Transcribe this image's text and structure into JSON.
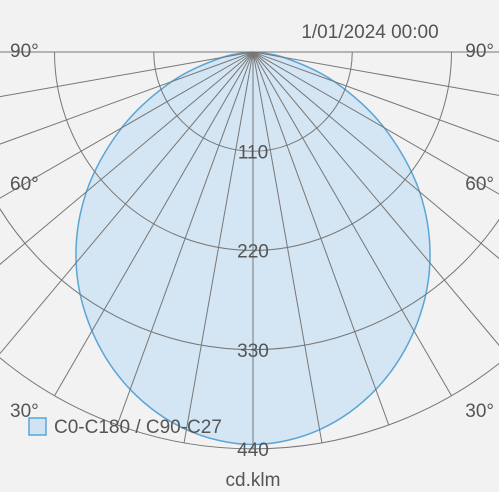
{
  "chart_data": {
    "type": "polar",
    "title": "1/01/2024 00:00",
    "unit_label": "cd.klm",
    "angle_labels": {
      "left": [
        "90°",
        "60°",
        "30°"
      ],
      "right": [
        "90°",
        "60°",
        "30°"
      ]
    },
    "radial_axis": {
      "ticks": [
        110,
        220,
        330,
        440
      ],
      "max": 440
    },
    "angular_grid_step_deg": 10,
    "angular_range_deg": [
      0,
      90
    ],
    "series": [
      {
        "name": "C0-C180 / C90-C27",
        "color": "#5aa6d6",
        "fill": "#cfe3f3",
        "angle_deg": [
          0,
          10,
          20,
          30,
          40,
          50,
          60,
          70,
          80,
          90
        ],
        "intensity": [
          435,
          425,
          398,
          357,
          305,
          241,
          168,
          96,
          35,
          0
        ]
      }
    ],
    "grid": true,
    "legend_position": "bottom-left"
  }
}
